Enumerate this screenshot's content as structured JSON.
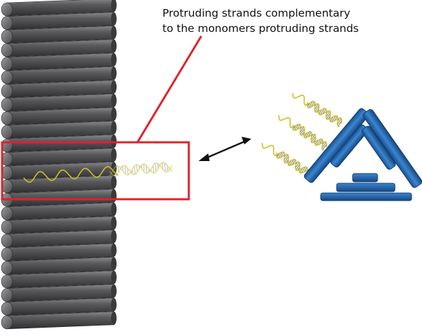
{
  "annotation": {
    "line1": "Protruding strands complementary",
    "line2": "to the monomers protruding strands"
  },
  "colors": {
    "origami_rod": "#4a4a4c",
    "highlight_box": "#e0212b",
    "pointer_line": "#e0212b",
    "dna_strand": "#c9c12a",
    "monomer_blue": "#1f5fa6",
    "arrow": "#111111"
  },
  "elements": {
    "origami": "dna-origami-rod-bundle",
    "monomer": "triangular-dna-monomer",
    "arrow": "double-headed-arrow"
  },
  "counts": {
    "origami_rods": 24,
    "monomer_strands": 3
  }
}
